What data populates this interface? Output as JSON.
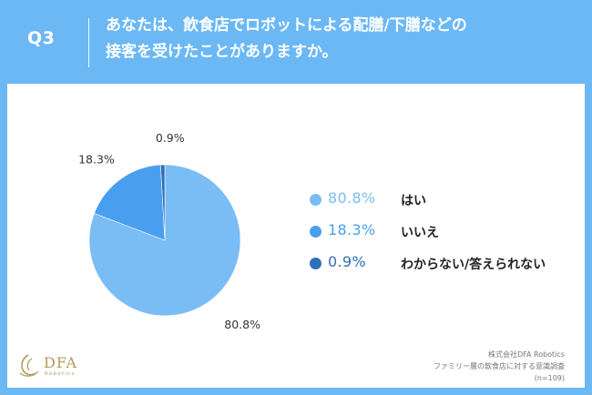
{
  "header": {
    "question_number": "Q3",
    "question_line1": "あなたは、飲食店でロボットによる配膳/下膳などの",
    "question_line2": "接客を受けたことがありますか。"
  },
  "colors": {
    "header_bg": "#6bb8f5",
    "yes": "#7abdf5",
    "no": "#4a9ef0",
    "unknown": "#2f6fb6"
  },
  "chart_data": {
    "type": "pie",
    "title": "",
    "slices": [
      {
        "name": "はい",
        "value": 80.8,
        "label": "80.8%",
        "color": "#7abdf5"
      },
      {
        "name": "いいえ",
        "value": 18.3,
        "label": "18.3%",
        "color": "#4a9ef0"
      },
      {
        "name": "わからない/答えられない",
        "value": 0.9,
        "label": "0.9%",
        "color": "#2f6fb6"
      }
    ],
    "legend_position": "right"
  },
  "legend": {
    "items": [
      {
        "pct": "80.8%",
        "name": "はい",
        "color": "#7abdf5"
      },
      {
        "pct": "18.3%",
        "name": "いいえ",
        "color": "#4a9ef0"
      },
      {
        "pct": "0.9%",
        "name": "わからない/答えられない",
        "color": "#2f6fb6"
      }
    ]
  },
  "footer": {
    "company": "株式会社DFA Robotics",
    "survey": "ファミリー層の飲食店に対する意識調査",
    "sample": "(n=109)"
  },
  "logo": {
    "name": "DFA",
    "sub": "Robotics",
    "icon": "dfa-logo-mark-icon"
  }
}
